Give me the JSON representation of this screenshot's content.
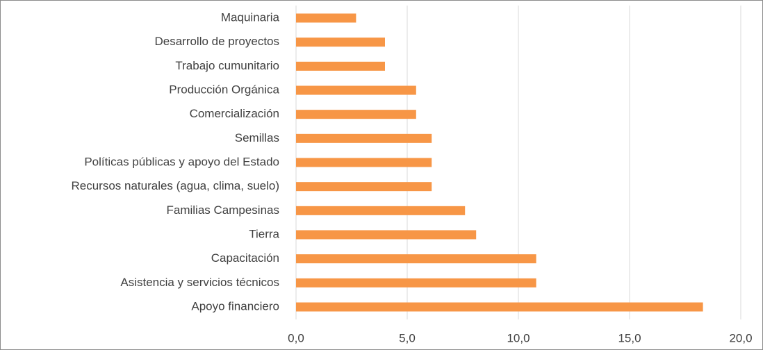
{
  "chart_data": {
    "type": "bar",
    "orientation": "horizontal",
    "categories": [
      "Maquinaria",
      "Desarrollo de proyectos",
      "Trabajo cumunitario",
      "Producción Orgánica",
      "Comercialización",
      "Semillas",
      "Políticas públicas y apoyo del Estado",
      "Recursos naturales (agua, clima, suelo)",
      "Familias Campesinas",
      "Tierra",
      "Capacitación",
      "Asistencia y servicios  técnicos",
      "Apoyo financiero"
    ],
    "values": [
      2.7,
      4.0,
      4.0,
      5.4,
      5.4,
      6.1,
      6.1,
      6.1,
      7.6,
      8.1,
      10.8,
      10.8,
      18.3
    ],
    "color": "#f79646",
    "xlim": [
      0,
      20
    ],
    "xticks": [
      {
        "value": 0,
        "label": "0,0"
      },
      {
        "value": 5,
        "label": "5,0"
      },
      {
        "value": 10,
        "label": "10,0"
      },
      {
        "value": 15,
        "label": "15,0"
      },
      {
        "value": 20,
        "label": "20,0"
      }
    ],
    "grid": true
  }
}
